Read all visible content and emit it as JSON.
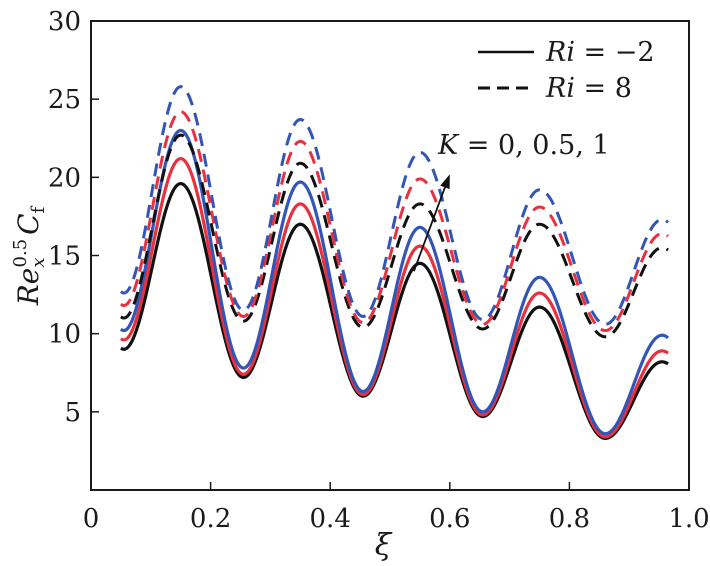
{
  "chart_data": {
    "type": "line",
    "title": "",
    "xlabel": "ξ",
    "ylabel": {
      "base": "Re",
      "sub": "x",
      "sup": "0.5",
      "second_base": "C",
      "second_sub": "f"
    },
    "xlim": [
      0.0,
      1.0
    ],
    "ylim": [
      0,
      30
    ],
    "x_ticks": [
      0,
      0.2,
      0.4,
      0.6,
      0.8,
      1.0
    ],
    "x_tick_labels": [
      "0",
      "0.2",
      "0.4",
      "0.6",
      "0.8",
      "1.0"
    ],
    "y_ticks": [
      5,
      10,
      15,
      20,
      25,
      30
    ],
    "y_tick_labels": [
      "5",
      "10",
      "15",
      "20",
      "25",
      "30"
    ],
    "grid": false,
    "legend": {
      "placement": "top-right",
      "entries": [
        {
          "label_base": "Ri",
          "label_rest": " = −2",
          "style": "solid"
        },
        {
          "label_base": "Ri",
          "label_rest": " = 8",
          "style": "dashed"
        }
      ]
    },
    "annotation": {
      "text_base": "K",
      "text_rest": " = 0, 0.5, 1",
      "arrow_from": [
        0.54,
        14.0
      ],
      "arrow_to": [
        0.6,
        20.2
      ]
    },
    "x_range": [
      0.05,
      0.965
    ],
    "series": [
      {
        "name": "Ri=-2, K=0",
        "style": "solid",
        "color": "#111111",
        "peaks": [
          [
            0.055,
            9.0
          ],
          [
            0.15,
            19.6
          ],
          [
            0.255,
            7.2
          ],
          [
            0.35,
            17.0
          ],
          [
            0.455,
            6.0
          ],
          [
            0.55,
            14.5
          ],
          [
            0.655,
            4.7
          ],
          [
            0.75,
            11.7
          ],
          [
            0.86,
            3.3
          ],
          [
            0.955,
            8.2
          ]
        ]
      },
      {
        "name": "Ri=-2, K=0.5",
        "style": "solid",
        "color": "#e8313f",
        "peaks": [
          [
            0.055,
            9.6
          ],
          [
            0.15,
            21.2
          ],
          [
            0.255,
            7.4
          ],
          [
            0.35,
            18.3
          ],
          [
            0.455,
            6.1
          ],
          [
            0.55,
            15.6
          ],
          [
            0.655,
            4.8
          ],
          [
            0.75,
            12.6
          ],
          [
            0.86,
            3.4
          ],
          [
            0.955,
            8.9
          ]
        ]
      },
      {
        "name": "Ri=-2, K=1",
        "style": "solid",
        "color": "#3355b5",
        "peaks": [
          [
            0.055,
            10.2
          ],
          [
            0.15,
            23.0
          ],
          [
            0.255,
            7.8
          ],
          [
            0.35,
            19.7
          ],
          [
            0.455,
            6.3
          ],
          [
            0.55,
            16.8
          ],
          [
            0.655,
            5.0
          ],
          [
            0.75,
            13.6
          ],
          [
            0.86,
            3.6
          ],
          [
            0.955,
            9.9
          ]
        ]
      },
      {
        "name": "Ri=8, K=0",
        "style": "dashed",
        "color": "#111111",
        "peaks": [
          [
            0.055,
            11.0
          ],
          [
            0.15,
            22.7
          ],
          [
            0.255,
            10.8
          ],
          [
            0.35,
            20.9
          ],
          [
            0.455,
            10.4
          ],
          [
            0.55,
            18.3
          ],
          [
            0.655,
            10.3
          ],
          [
            0.75,
            17.0
          ],
          [
            0.86,
            9.8
          ],
          [
            0.955,
            15.5
          ]
        ]
      },
      {
        "name": "Ri=8, K=0.5",
        "style": "dashed",
        "color": "#e8313f",
        "peaks": [
          [
            0.055,
            11.8
          ],
          [
            0.15,
            24.2
          ],
          [
            0.255,
            11.1
          ],
          [
            0.35,
            22.3
          ],
          [
            0.455,
            10.7
          ],
          [
            0.55,
            19.9
          ],
          [
            0.655,
            10.6
          ],
          [
            0.75,
            18.1
          ],
          [
            0.86,
            10.2
          ],
          [
            0.955,
            16.4
          ]
        ]
      },
      {
        "name": "Ri=8, K=1",
        "style": "dashed",
        "color": "#3355b5",
        "peaks": [
          [
            0.055,
            12.6
          ],
          [
            0.15,
            25.8
          ],
          [
            0.255,
            11.5
          ],
          [
            0.35,
            23.7
          ],
          [
            0.455,
            11.1
          ],
          [
            0.55,
            21.6
          ],
          [
            0.655,
            10.9
          ],
          [
            0.75,
            19.2
          ],
          [
            0.86,
            10.6
          ],
          [
            0.955,
            17.3
          ]
        ]
      }
    ]
  }
}
